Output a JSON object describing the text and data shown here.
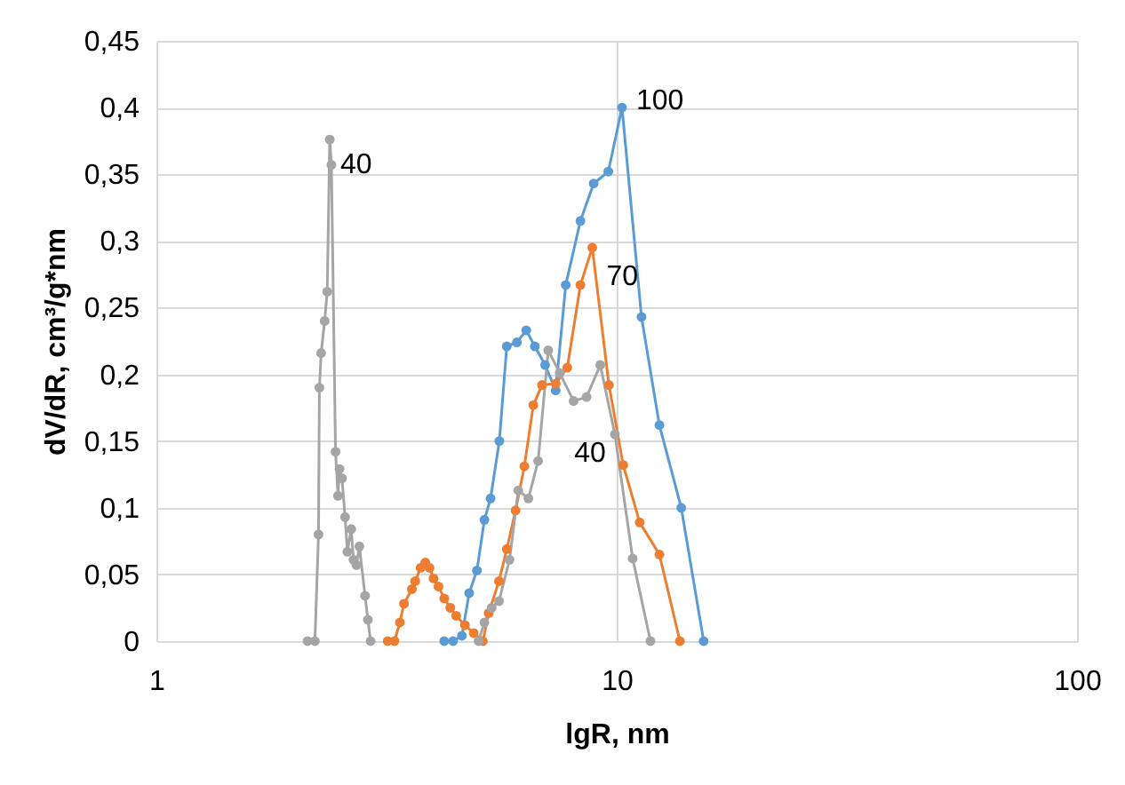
{
  "chart_data": {
    "type": "line",
    "xlabel": "lgR, nm",
    "ylabel": "dV/dR, cm³/g*nm",
    "log": "x",
    "grid": true,
    "legend": false,
    "marker": "circle",
    "line_style": "solid",
    "xlim": [
      1,
      100
    ],
    "xticks": [
      1,
      10,
      100
    ],
    "ylim": [
      0,
      0.45
    ],
    "yticks": [
      0,
      {
        "value": 0.05,
        "label": "0,05"
      },
      {
        "value": 0.1,
        "label": "0,1"
      },
      {
        "value": 0.15,
        "label": "0,15"
      },
      {
        "value": 0.2,
        "label": "0,2"
      },
      {
        "value": 0.25,
        "label": "0,25"
      },
      {
        "value": 0.3,
        "label": "0,3"
      },
      {
        "value": 0.35,
        "label": "0,35"
      },
      {
        "value": 0.4,
        "label": "0,4"
      },
      {
        "value": 0.45,
        "label": "0,45"
      }
    ],
    "annotations": [
      "40"
    ],
    "series": [
      {
        "name": "100",
        "color": "#5b9bd5",
        "x": [
          4.22,
          4.41,
          4.61,
          4.78,
          4.97,
          5.16,
          5.32,
          5.56,
          5.77,
          6.07,
          6.36,
          6.64,
          6.99,
          7.37,
          7.75,
          8.34,
          8.91,
          9.59,
          10.27,
          11.32,
          12.38,
          13.81,
          15.45
        ],
        "values": [
          0,
          0,
          0.004,
          0.036,
          0.053,
          0.091,
          0.107,
          0.15,
          0.221,
          0.224,
          0.233,
          0.221,
          0.207,
          0.188,
          0.267,
          0.315,
          0.343,
          0.352,
          0.4,
          0.243,
          0.162,
          0.1,
          0
        ]
      },
      {
        "name": "70",
        "color": "#ed7d31",
        "x": [
          3.18,
          3.29,
          3.38,
          3.45,
          3.59,
          3.65,
          3.75,
          3.84,
          3.92,
          4.0,
          4.1,
          4.22,
          4.35,
          4.48,
          4.68,
          4.89,
          5.12,
          5.27,
          5.55,
          5.77,
          6.03,
          6.3,
          6.59,
          6.88,
          7.37,
          7.81,
          8.34,
          8.85,
          9.62,
          10.33,
          11.22,
          12.38,
          13.72
        ],
        "values": [
          0,
          0,
          0.014,
          0.028,
          0.039,
          0.045,
          0.055,
          0.059,
          0.055,
          0.047,
          0.041,
          0.032,
          0.025,
          0.019,
          0.012,
          0.006,
          0,
          0.021,
          0.045,
          0.069,
          0.098,
          0.131,
          0.177,
          0.192,
          0.193,
          0.205,
          0.267,
          0.295,
          0.192,
          0.132,
          0.089,
          0.065,
          0
        ]
      },
      {
        "name": "40",
        "color": "#a5a5a5",
        "x": [
          2.13,
          2.21,
          2.25,
          2.26,
          2.28,
          2.32,
          2.35,
          2.38,
          2.4,
          2.45,
          2.48,
          2.5,
          2.53,
          2.57,
          2.6,
          2.65,
          2.68,
          2.72,
          2.76,
          2.84,
          2.88,
          2.92,
          4.0,
          5.01,
          5.16,
          5.35,
          5.55,
          5.85,
          6.11,
          6.43,
          6.75,
          7.1,
          7.52,
          8.06,
          8.6,
          9.21,
          9.91,
          10.83,
          11.84
        ],
        "values": [
          0,
          0,
          0.08,
          0.19,
          0.216,
          0.24,
          0.262,
          0.376,
          0.357,
          0.142,
          0.109,
          0.129,
          0.122,
          0.093,
          0.067,
          0.084,
          0.061,
          0.057,
          0.071,
          0.034,
          0.016,
          0,
          null,
          0,
          0.014,
          0.025,
          0.03,
          0.061,
          0.113,
          0.107,
          0.135,
          0.218,
          0.201,
          0.18,
          0.183,
          0.207,
          0.155,
          0.062,
          0
        ]
      }
    ]
  }
}
